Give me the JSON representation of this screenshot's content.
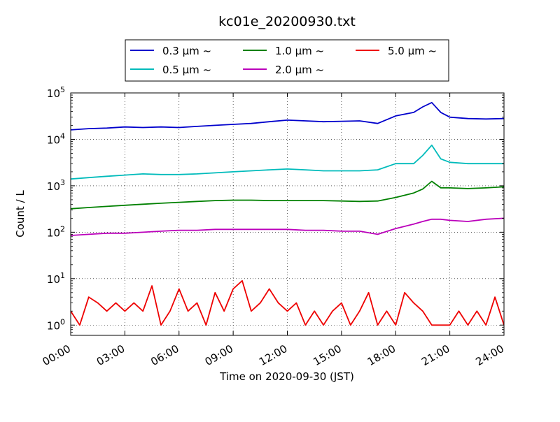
{
  "chart_data": {
    "type": "line",
    "title": "kc01e_20200930.txt",
    "xlabel": "Time on 2020-09-30 (JST)",
    "ylabel": "Count / L",
    "y_scale": "log",
    "ylim": [
      0.6,
      100000
    ],
    "xlim_hours": [
      0,
      24
    ],
    "x_ticks": [
      "00:00",
      "03:00",
      "06:00",
      "09:00",
      "12:00",
      "15:00",
      "18:00",
      "21:00",
      "24:00"
    ],
    "y_ticks": [
      {
        "base": "10",
        "exp": "0"
      },
      {
        "base": "10",
        "exp": "1"
      },
      {
        "base": "10",
        "exp": "2"
      },
      {
        "base": "10",
        "exp": "3"
      },
      {
        "base": "10",
        "exp": "4"
      },
      {
        "base": "10",
        "exp": "5"
      }
    ],
    "grid": true,
    "legend_position": "top-center",
    "series": [
      {
        "name": "0.3 μm ~",
        "color": "#0000cc",
        "x_hours": [
          0,
          1,
          2,
          3,
          4,
          5,
          6,
          7,
          8,
          9,
          10,
          11,
          12,
          13,
          14,
          15,
          16,
          17,
          18,
          19,
          19.5,
          20,
          20.5,
          21,
          22,
          23,
          24
        ],
        "values": [
          16000,
          17000,
          17500,
          18500,
          18000,
          18500,
          18000,
          19000,
          20000,
          21000,
          22000,
          24000,
          26000,
          25000,
          24000,
          24500,
          25000,
          22000,
          32000,
          38000,
          50000,
          62000,
          38000,
          30000,
          28000,
          27500,
          28000
        ]
      },
      {
        "name": "0.5 μm ~",
        "color": "#00bbbb",
        "x_hours": [
          0,
          1,
          2,
          3,
          4,
          5,
          6,
          7,
          8,
          9,
          10,
          11,
          12,
          13,
          14,
          15,
          16,
          17,
          18,
          19,
          19.5,
          20,
          20.5,
          21,
          22,
          23,
          24
        ],
        "values": [
          1400,
          1500,
          1600,
          1700,
          1800,
          1750,
          1750,
          1800,
          1900,
          2000,
          2100,
          2200,
          2300,
          2200,
          2100,
          2100,
          2100,
          2200,
          3000,
          3000,
          4500,
          7500,
          3800,
          3200,
          3000,
          3000,
          3000
        ]
      },
      {
        "name": "1.0 μm ~",
        "color": "#008000",
        "x_hours": [
          0,
          1,
          2,
          3,
          4,
          5,
          6,
          7,
          8,
          9,
          10,
          11,
          12,
          13,
          14,
          15,
          16,
          17,
          18,
          19,
          19.5,
          20,
          20.5,
          21,
          22,
          23,
          24
        ],
        "values": [
          320,
          340,
          360,
          380,
          400,
          420,
          440,
          460,
          480,
          490,
          490,
          480,
          480,
          480,
          480,
          470,
          460,
          470,
          560,
          700,
          850,
          1250,
          900,
          900,
          870,
          900,
          950
        ]
      },
      {
        "name": "2.0 μm ~",
        "color": "#bb00bb",
        "x_hours": [
          0,
          1,
          2,
          3,
          4,
          5,
          6,
          7,
          8,
          9,
          10,
          11,
          12,
          13,
          14,
          15,
          16,
          17,
          18,
          19,
          19.5,
          20,
          20.5,
          21,
          22,
          23,
          24
        ],
        "values": [
          85,
          90,
          95,
          95,
          100,
          105,
          110,
          110,
          115,
          115,
          115,
          115,
          115,
          110,
          110,
          105,
          105,
          90,
          120,
          150,
          170,
          190,
          190,
          180,
          170,
          190,
          200
        ]
      },
      {
        "name": "5.0 μm ~",
        "color": "#ee0000",
        "x_hours": [
          0,
          0.5,
          1,
          1.5,
          2,
          2.5,
          3,
          3.5,
          4,
          4.5,
          5,
          5.5,
          6,
          6.5,
          7,
          7.5,
          8,
          8.5,
          9,
          9.5,
          10,
          10.5,
          11,
          11.5,
          12,
          12.5,
          13,
          13.5,
          14,
          14.5,
          15,
          15.5,
          16,
          16.5,
          17,
          17.5,
          18,
          18.5,
          19,
          19.5,
          20,
          20.5,
          21,
          21.5,
          22,
          22.5,
          23,
          23.5,
          24
        ],
        "values": [
          2,
          1,
          4,
          3,
          2,
          3,
          2,
          3,
          2,
          7,
          1,
          2,
          6,
          2,
          3,
          1,
          5,
          2,
          6,
          9,
          2,
          3,
          6,
          3,
          2,
          3,
          1,
          2,
          1,
          2,
          3,
          1,
          2,
          5,
          1,
          2,
          1,
          5,
          3,
          2,
          1,
          1,
          1,
          2,
          1,
          2,
          1,
          4,
          1
        ]
      }
    ]
  }
}
